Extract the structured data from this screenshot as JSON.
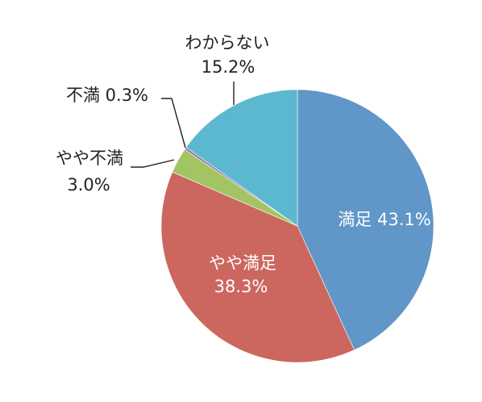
{
  "chart_data": {
    "type": "pie",
    "title": "",
    "slices": [
      {
        "label": "満足",
        "value": 43.1,
        "display": "43.1%",
        "color": "#6196c9"
      },
      {
        "label": "やや満足",
        "value": 38.3,
        "display": "38.3%",
        "color": "#cc6760"
      },
      {
        "label": "やや不満",
        "value": 3.0,
        "display": "3.0%",
        "color": "#a3c463"
      },
      {
        "label": "不満",
        "value": 0.3,
        "display": "0.3%",
        "color": "#8f79ad"
      },
      {
        "label": "わからない",
        "value": 15.2,
        "display": "15.2%",
        "color": "#5cb8cf"
      }
    ],
    "start_angle_deg": 0,
    "direction": "clockwise",
    "legend": "none"
  }
}
